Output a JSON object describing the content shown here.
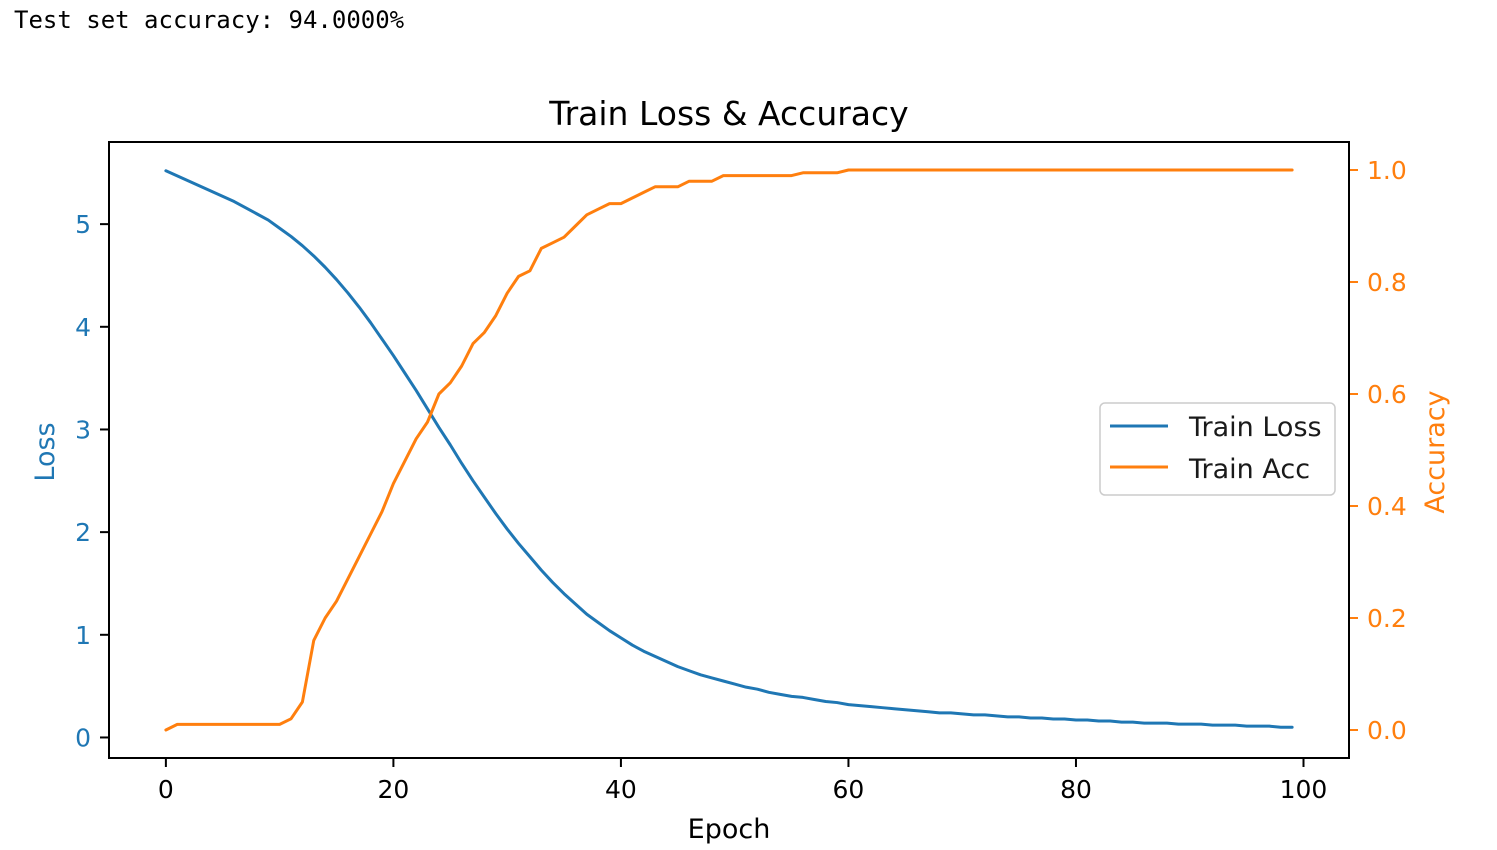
{
  "output": {
    "text": "Test set accuracy: 94.0000%"
  },
  "colors": {
    "loss": "#1f77b4",
    "acc": "#ff7f0e",
    "axis": "#000000",
    "legend_border": "#cccccc"
  },
  "chart_data": {
    "type": "line",
    "title": "Train Loss & Accuracy",
    "xlabel": "Epoch",
    "ylabel_left": "Loss",
    "ylabel_right": "Accuracy",
    "xlim": [
      -5,
      104
    ],
    "ylim_left": [
      -0.2,
      5.8
    ],
    "ylim_right": [
      -0.05,
      1.05
    ],
    "xticks": [
      0,
      20,
      40,
      60,
      80,
      100
    ],
    "yticks_left": [
      0,
      1,
      2,
      3,
      4,
      5
    ],
    "yticks_right": [
      0.0,
      0.2,
      0.4,
      0.6,
      0.8,
      1.0
    ],
    "legend": {
      "position": "center-right",
      "entries": [
        "Train Loss",
        "Train Acc"
      ]
    },
    "grid": false,
    "series": [
      {
        "name": "Train Loss",
        "axis": "left",
        "x": [
          0,
          1,
          2,
          3,
          4,
          5,
          6,
          7,
          8,
          9,
          10,
          11,
          12,
          13,
          14,
          15,
          16,
          17,
          18,
          19,
          20,
          21,
          22,
          23,
          24,
          25,
          26,
          27,
          28,
          29,
          30,
          31,
          32,
          33,
          34,
          35,
          36,
          37,
          38,
          39,
          40,
          41,
          42,
          43,
          44,
          45,
          46,
          47,
          48,
          49,
          50,
          51,
          52,
          53,
          54,
          55,
          56,
          57,
          58,
          59,
          60,
          61,
          62,
          63,
          64,
          65,
          66,
          67,
          68,
          69,
          70,
          71,
          72,
          73,
          74,
          75,
          76,
          77,
          78,
          79,
          80,
          81,
          82,
          83,
          84,
          85,
          86,
          87,
          88,
          89,
          90,
          91,
          92,
          93,
          94,
          95,
          96,
          97,
          98,
          99
        ],
        "values": [
          5.52,
          5.47,
          5.42,
          5.37,
          5.32,
          5.27,
          5.22,
          5.16,
          5.1,
          5.04,
          4.96,
          4.88,
          4.79,
          4.69,
          4.58,
          4.46,
          4.33,
          4.19,
          4.04,
          3.88,
          3.72,
          3.55,
          3.38,
          3.2,
          3.02,
          2.85,
          2.67,
          2.5,
          2.34,
          2.18,
          2.03,
          1.89,
          1.76,
          1.63,
          1.51,
          1.4,
          1.3,
          1.2,
          1.12,
          1.04,
          0.97,
          0.9,
          0.84,
          0.79,
          0.74,
          0.69,
          0.65,
          0.61,
          0.58,
          0.55,
          0.52,
          0.49,
          0.47,
          0.44,
          0.42,
          0.4,
          0.39,
          0.37,
          0.35,
          0.34,
          0.32,
          0.31,
          0.3,
          0.29,
          0.28,
          0.27,
          0.26,
          0.25,
          0.24,
          0.24,
          0.23,
          0.22,
          0.22,
          0.21,
          0.2,
          0.2,
          0.19,
          0.19,
          0.18,
          0.18,
          0.17,
          0.17,
          0.16,
          0.16,
          0.15,
          0.15,
          0.14,
          0.14,
          0.14,
          0.13,
          0.13,
          0.13,
          0.12,
          0.12,
          0.12,
          0.11,
          0.11,
          0.11,
          0.1,
          0.1
        ]
      },
      {
        "name": "Train Acc",
        "axis": "right",
        "x": [
          0,
          1,
          2,
          3,
          4,
          5,
          6,
          7,
          8,
          9,
          10,
          11,
          12,
          13,
          14,
          15,
          16,
          17,
          18,
          19,
          20,
          21,
          22,
          23,
          24,
          25,
          26,
          27,
          28,
          29,
          30,
          31,
          32,
          33,
          34,
          35,
          36,
          37,
          38,
          39,
          40,
          41,
          42,
          43,
          44,
          45,
          46,
          47,
          48,
          49,
          50,
          51,
          52,
          53,
          54,
          55,
          56,
          57,
          58,
          59,
          60,
          61,
          62,
          63,
          64,
          65,
          66,
          67,
          68,
          69,
          70,
          71,
          72,
          73,
          74,
          75,
          76,
          77,
          78,
          79,
          80,
          81,
          82,
          83,
          84,
          85,
          86,
          87,
          88,
          89,
          90,
          91,
          92,
          93,
          94,
          95,
          96,
          97,
          98,
          99
        ],
        "values": [
          0.0,
          0.01,
          0.01,
          0.01,
          0.01,
          0.01,
          0.01,
          0.01,
          0.01,
          0.01,
          0.01,
          0.02,
          0.05,
          0.16,
          0.2,
          0.23,
          0.27,
          0.31,
          0.35,
          0.39,
          0.44,
          0.48,
          0.52,
          0.55,
          0.6,
          0.62,
          0.65,
          0.69,
          0.71,
          0.74,
          0.78,
          0.81,
          0.82,
          0.86,
          0.87,
          0.88,
          0.9,
          0.92,
          0.93,
          0.94,
          0.94,
          0.95,
          0.96,
          0.97,
          0.97,
          0.97,
          0.98,
          0.98,
          0.98,
          0.99,
          0.99,
          0.99,
          0.99,
          0.99,
          0.99,
          0.99,
          0.995,
          0.995,
          0.995,
          0.995,
          1.0,
          1.0,
          1.0,
          1.0,
          1.0,
          1.0,
          1.0,
          1.0,
          1.0,
          1.0,
          1.0,
          1.0,
          1.0,
          1.0,
          1.0,
          1.0,
          1.0,
          1.0,
          1.0,
          1.0,
          1.0,
          1.0,
          1.0,
          1.0,
          1.0,
          1.0,
          1.0,
          1.0,
          1.0,
          1.0,
          1.0,
          1.0,
          1.0,
          1.0,
          1.0,
          1.0,
          1.0,
          1.0,
          1.0,
          1.0
        ]
      }
    ]
  }
}
